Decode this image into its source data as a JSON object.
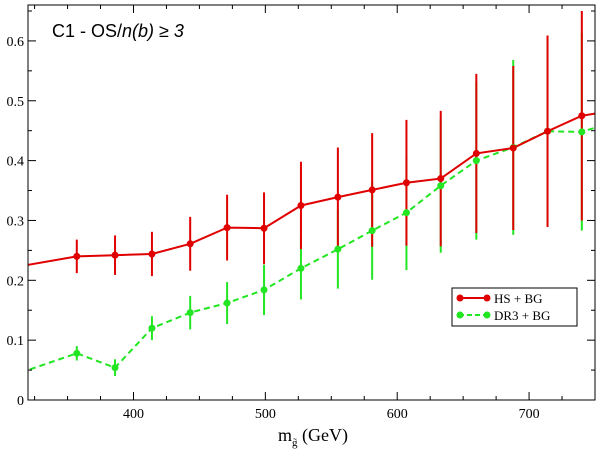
{
  "chart_data": {
    "type": "line",
    "title": "C1 - OS/n(b) ≥ 3",
    "title_parts": {
      "prefix": "C1 - OS/",
      "italic1": "n(b)",
      "middle": " ≥ ",
      "italic2": "3"
    },
    "xlabel": {
      "main": "m",
      "sub": "g̃",
      "unit": " (GeV)"
    },
    "ylabel": "",
    "xlim": [
      320,
      750
    ],
    "ylim": [
      0,
      0.66
    ],
    "xticks": [
      400,
      500,
      600,
      700
    ],
    "yticks": [
      0,
      0.1,
      0.2,
      0.3,
      0.4,
      0.5,
      0.6
    ],
    "ytick_labels": [
      "0",
      "0.1",
      "0.2",
      "0.3",
      "0.4",
      "0.5",
      "0.6"
    ],
    "grid": false,
    "legend_position": "center-right",
    "series": [
      {
        "name": "HS + BG",
        "color": "#e00000",
        "linestyle": "solid",
        "x": [
          300,
          357,
          386,
          414,
          443,
          471,
          499,
          527,
          555,
          581,
          607,
          633,
          660,
          688,
          714,
          740,
          760
        ],
        "y": [
          0.218,
          0.24,
          0.242,
          0.244,
          0.261,
          0.288,
          0.287,
          0.325,
          0.339,
          0.351,
          0.363,
          0.37,
          0.412,
          0.421,
          0.449,
          0.475,
          0.482
        ],
        "markers": [
          false,
          true,
          true,
          true,
          true,
          true,
          true,
          true,
          true,
          true,
          true,
          true,
          true,
          true,
          true,
          true,
          false
        ],
        "err": [
          0,
          0.028,
          0.033,
          0.037,
          0.045,
          0.055,
          0.06,
          0.073,
          0.083,
          0.095,
          0.105,
          0.113,
          0.133,
          0.137,
          0.16,
          0.175,
          0
        ]
      },
      {
        "name": "DR3 + BG",
        "color": "#22e622",
        "linestyle": "dashed",
        "x": [
          300,
          357,
          386,
          414,
          443,
          471,
          499,
          527,
          555,
          581,
          607,
          633,
          660,
          688,
          714,
          740,
          760
        ],
        "y": [
          0.035,
          0.078,
          0.054,
          0.12,
          0.146,
          0.162,
          0.184,
          0.22,
          0.252,
          0.283,
          0.313,
          0.358,
          0.4,
          0.422,
          0.449,
          0.448,
          0.462
        ],
        "markers": [
          false,
          true,
          true,
          true,
          true,
          true,
          true,
          true,
          true,
          true,
          true,
          true,
          true,
          true,
          true,
          true,
          false
        ],
        "err": [
          0,
          0.012,
          0.014,
          0.02,
          0.028,
          0.035,
          0.042,
          0.052,
          0.066,
          0.082,
          0.096,
          0.112,
          0.132,
          0.146,
          0.16,
          0.165,
          0
        ]
      }
    ]
  }
}
